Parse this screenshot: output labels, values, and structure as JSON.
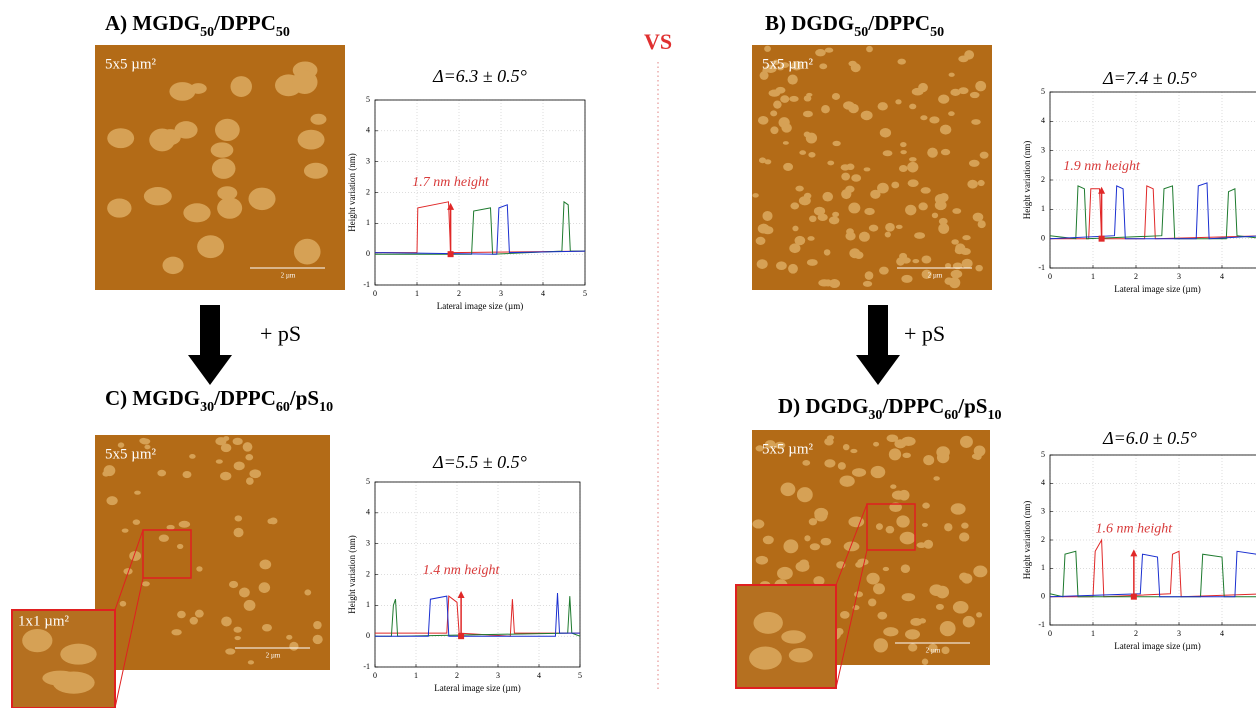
{
  "header": {
    "vs": "VS"
  },
  "arrows": [
    {
      "label": "+ pS"
    },
    {
      "label": "+ pS"
    }
  ],
  "panels": [
    {
      "title": [
        "A) MGDG",
        "50",
        "/DPPC",
        "50"
      ],
      "image_label": "5x5 µm²",
      "scale_label": "2 µm"
    },
    {
      "title": [
        "B) DGDG",
        "50",
        "/DPPC",
        "50"
      ],
      "image_label": "5x5 µm²",
      "scale_label": "2 µm"
    },
    {
      "title": [
        "C) MGDG",
        "30",
        "/DPPC",
        "60",
        "/pS",
        "10"
      ],
      "image_label": "5x5 µm²",
      "scale_label": "2 µm",
      "inset_label": "1x1 µm²"
    },
    {
      "title": [
        "D) DGDG",
        "30",
        "/DPPC",
        "60",
        "/pS",
        "10"
      ],
      "image_label": "5x5 µm²",
      "scale_label": "2 µm"
    }
  ],
  "chart_data": [
    {
      "type": "line",
      "title": "Δ=6.3 ± 0.5°",
      "annotation": "1.7 nm height",
      "xlabel": "Lateral image size (µm)",
      "ylabel": "Height variation (nm)",
      "xlim": [
        0,
        5
      ],
      "ylim": [
        -1,
        5
      ],
      "xticks": [
        0,
        1,
        2,
        3,
        4,
        5
      ],
      "yticks": [
        -1,
        0,
        1,
        2,
        3,
        4,
        5
      ],
      "grid": true,
      "height_marker": {
        "x": 1.8,
        "from": 0,
        "to": 1.6,
        "color": "#e02828"
      },
      "series": [
        {
          "color": "#e02828",
          "x": [
            0,
            1,
            1.02,
            1.75,
            1.8,
            5
          ],
          "values": [
            0.05,
            0.05,
            1.5,
            1.7,
            0.05,
            0.1
          ]
        },
        {
          "color": "#1e7a2e",
          "x": [
            0,
            2.3,
            2.35,
            2.75,
            2.8,
            4.45,
            4.5,
            4.6,
            4.65,
            5
          ],
          "values": [
            0,
            0,
            1.4,
            1.5,
            0,
            0.1,
            1.7,
            1.6,
            0.1,
            0.1
          ]
        },
        {
          "color": "#1a2fd0",
          "x": [
            0,
            2.9,
            2.95,
            3.15,
            3.2,
            5
          ],
          "values": [
            0.05,
            0,
            1.5,
            1.6,
            0.05,
            0.1
          ]
        }
      ]
    },
    {
      "type": "line",
      "title": "Δ=7.4 ± 0.5°",
      "annotation": "1.9 nm height",
      "xlabel": "Lateral image size (µm)",
      "ylabel": "Height variation (nm)",
      "xlim": [
        0,
        5
      ],
      "ylim": [
        -1,
        5
      ],
      "xticks": [
        0,
        1,
        2,
        3,
        4
      ],
      "yticks": [
        -1,
        0,
        1,
        2,
        3,
        4,
        5
      ],
      "grid": true,
      "height_marker": {
        "x": 1.2,
        "from": 0,
        "to": 1.7,
        "color": "#e02828"
      },
      "series": [
        {
          "color": "#e02828",
          "x": [
            0,
            0.9,
            0.95,
            1.15,
            1.2,
            2.2,
            2.25,
            2.4,
            2.45,
            5
          ],
          "values": [
            0,
            0,
            1.7,
            1.7,
            0,
            0,
            1.8,
            1.7,
            0,
            0.1
          ]
        },
        {
          "color": "#1e7a2e",
          "x": [
            0,
            0.6,
            0.65,
            0.8,
            0.85,
            2.6,
            2.65,
            2.85,
            2.9,
            4.1,
            4.15,
            4.3,
            4.35,
            5
          ],
          "values": [
            0.1,
            0,
            1.8,
            1.7,
            0,
            0.1,
            1.7,
            1.8,
            0,
            0,
            1.6,
            1.7,
            0.1,
            0
          ]
        },
        {
          "color": "#1a2fd0",
          "x": [
            0,
            1.5,
            1.55,
            1.7,
            1.75,
            3.4,
            3.45,
            3.65,
            3.7,
            5
          ],
          "values": [
            0,
            0.1,
            1.8,
            1.7,
            0,
            0,
            1.8,
            1.9,
            0,
            0.1
          ]
        }
      ]
    },
    {
      "type": "line",
      "title": "Δ=5.5 ± 0.5°",
      "annotation": "1.4 nm height",
      "xlabel": "Lateral image size (µm)",
      "ylabel": "Height variation (nm)",
      "xlim": [
        0,
        5
      ],
      "ylim": [
        -1,
        5
      ],
      "xticks": [
        0,
        1,
        2,
        3,
        4,
        5
      ],
      "yticks": [
        -1,
        0,
        1,
        2,
        3,
        4,
        5
      ],
      "grid": true,
      "height_marker": {
        "x": 2.1,
        "from": 0,
        "to": 1.4,
        "color": "#e02828"
      },
      "series": [
        {
          "color": "#e02828",
          "x": [
            0,
            1.75,
            1.8,
            2,
            2.05,
            3.3,
            3.35,
            3.4,
            5
          ],
          "values": [
            0.1,
            0.1,
            1.3,
            1.1,
            0.1,
            0,
            1.2,
            0.1,
            0.1
          ]
        },
        {
          "color": "#1e7a2e",
          "x": [
            0,
            0.4,
            0.45,
            0.5,
            0.55,
            4.7,
            4.75,
            4.8,
            5
          ],
          "values": [
            0,
            0,
            1,
            1.2,
            0,
            0.1,
            1.3,
            0.1,
            0
          ]
        },
        {
          "color": "#1a2fd0",
          "x": [
            0,
            1.3,
            1.35,
            1.75,
            1.8,
            4.4,
            4.45,
            4.5,
            5
          ],
          "values": [
            0,
            0,
            1.2,
            1.3,
            0,
            0,
            1.4,
            0.1,
            0.1
          ]
        }
      ]
    },
    {
      "type": "line",
      "title": "Δ=6.0 ± 0.5°",
      "annotation": "1.6 nm height",
      "xlabel": "Lateral image size (µm)",
      "ylabel": "Height variation (nm)",
      "xlim": [
        0,
        5
      ],
      "ylim": [
        -1,
        5
      ],
      "xticks": [
        0,
        1,
        2,
        3,
        4
      ],
      "yticks": [
        -1,
        0,
        1,
        2,
        3,
        4,
        5
      ],
      "grid": true,
      "height_marker": {
        "x": 1.95,
        "from": 0,
        "to": 1.6,
        "color": "#e02828"
      },
      "series": [
        {
          "color": "#e02828",
          "x": [
            0,
            1,
            1.05,
            1.2,
            1.25,
            2.8,
            2.85,
            3,
            3.05,
            5
          ],
          "values": [
            0,
            0,
            1.6,
            2,
            0,
            0.1,
            1.5,
            1.6,
            0,
            0.1
          ]
        },
        {
          "color": "#1e7a2e",
          "x": [
            0,
            0.3,
            0.35,
            0.6,
            0.65,
            3.5,
            3.55,
            4,
            4.05,
            5
          ],
          "values": [
            0.1,
            0,
            1.5,
            1.6,
            0,
            0,
            1.5,
            1.4,
            0,
            0
          ]
        },
        {
          "color": "#1a2fd0",
          "x": [
            0,
            2.1,
            2.15,
            2.5,
            2.55,
            4.3,
            4.35,
            4.8,
            4.85,
            5
          ],
          "values": [
            0,
            0.1,
            1.5,
            1.4,
            0,
            0,
            1.6,
            1.5,
            0,
            0.1
          ]
        }
      ]
    }
  ]
}
